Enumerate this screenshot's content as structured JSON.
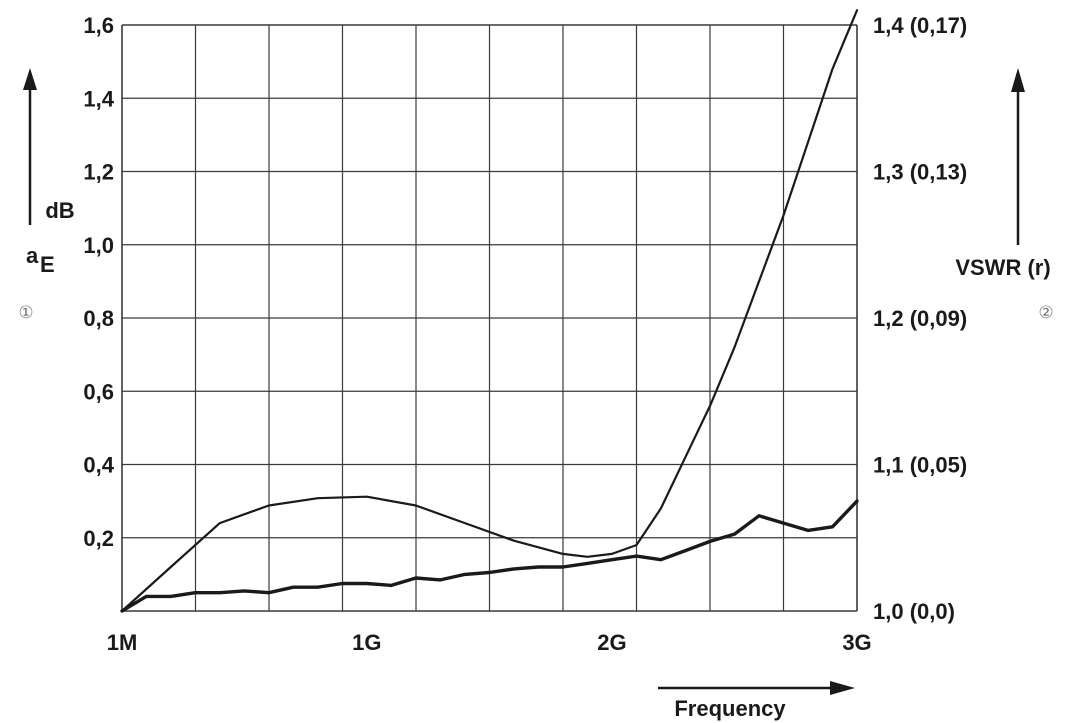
{
  "chart_data": {
    "type": "line",
    "x_ticks": [
      {
        "label": "1M",
        "value": 0.001
      },
      {
        "label": "1G",
        "value": 1.0
      },
      {
        "label": "2G",
        "value": 2.0
      },
      {
        "label": "3G",
        "value": 3.0
      }
    ],
    "xlim": [
      0.001,
      3.0
    ],
    "xlabel": "Frequency",
    "left_axis": {
      "label_main": "a",
      "label_sub": "E",
      "unit": "dB",
      "marker": "①",
      "ylim": [
        0,
        1.6
      ],
      "ticks": [
        {
          "label": "0,2",
          "value": 0.2
        },
        {
          "label": "0,4",
          "value": 0.4
        },
        {
          "label": "0,6",
          "value": 0.6
        },
        {
          "label": "0,8",
          "value": 0.8
        },
        {
          "label": "1,0",
          "value": 1.0
        },
        {
          "label": "1,2",
          "value": 1.2
        },
        {
          "label": "1,4",
          "value": 1.4
        },
        {
          "label": "1,6",
          "value": 1.6
        }
      ]
    },
    "right_axis": {
      "label": "VSWR (r)",
      "marker": "②",
      "ylim": [
        1.0,
        1.4
      ],
      "ticks": [
        {
          "label": "1,0 (0,0)",
          "value": 1.0
        },
        {
          "label": "1,1 (0,05)",
          "value": 1.1
        },
        {
          "label": "1,2 (0,09)",
          "value": 1.2
        },
        {
          "label": "1,3 (0,13)",
          "value": 1.3
        },
        {
          "label": "1,4 (0,17)",
          "value": 1.4
        }
      ]
    },
    "grid": true,
    "series": [
      {
        "axis": "left",
        "color": "#1a1a1a",
        "x": [
          0.001,
          0.1,
          0.2,
          0.3,
          0.4,
          0.5,
          0.6,
          0.7,
          0.8,
          0.9,
          1.0,
          1.1,
          1.2,
          1.3,
          1.4,
          1.5,
          1.6,
          1.7,
          1.8,
          1.9,
          2.0,
          2.1,
          2.2,
          2.3,
          2.4,
          2.5,
          2.6,
          2.7,
          2.8,
          2.9,
          3.0
        ],
        "y": [
          0.0,
          0.04,
          0.04,
          0.05,
          0.05,
          0.055,
          0.05,
          0.065,
          0.065,
          0.075,
          0.075,
          0.07,
          0.09,
          0.085,
          0.1,
          0.105,
          0.115,
          0.12,
          0.12,
          0.13,
          0.14,
          0.15,
          0.14,
          0.165,
          0.19,
          0.21,
          0.26,
          0.24,
          0.22,
          0.23,
          0.3
        ]
      },
      {
        "axis": "right",
        "color": "#1a1a1a",
        "x": [
          0.001,
          0.2,
          0.4,
          0.6,
          0.8,
          1.0,
          1.2,
          1.4,
          1.6,
          1.8,
          1.9,
          2.0,
          2.1,
          2.2,
          2.3,
          2.4,
          2.5,
          2.6,
          2.7,
          2.8,
          2.9,
          3.0
        ],
        "y": [
          1.0,
          1.03,
          1.06,
          1.072,
          1.077,
          1.078,
          1.072,
          1.06,
          1.048,
          1.039,
          1.037,
          1.039,
          1.045,
          1.07,
          1.105,
          1.14,
          1.18,
          1.225,
          1.27,
          1.32,
          1.37,
          1.41
        ]
      }
    ]
  }
}
